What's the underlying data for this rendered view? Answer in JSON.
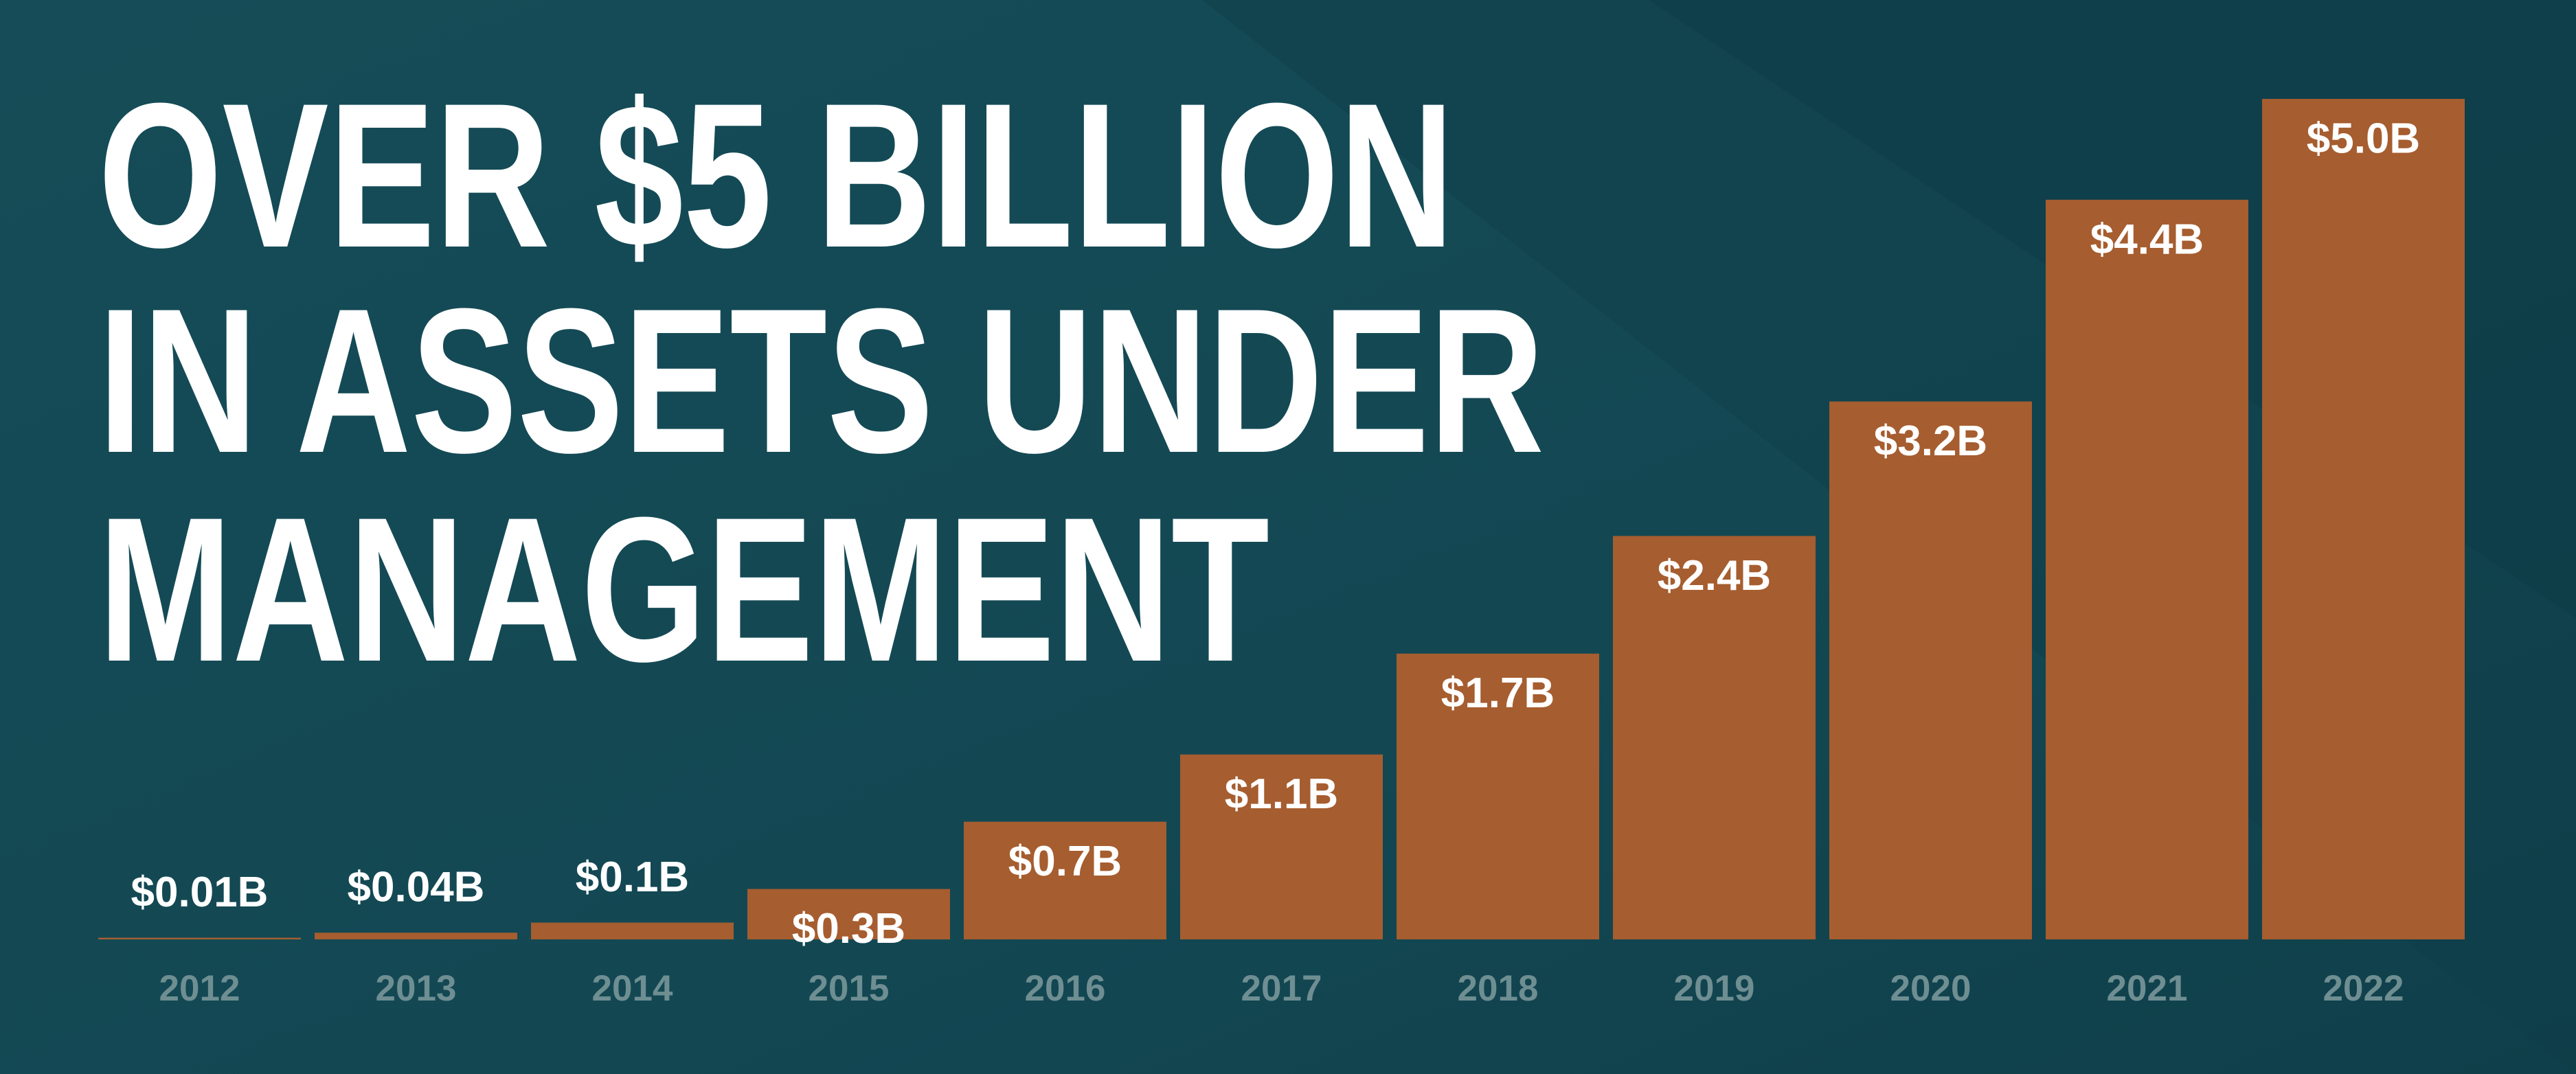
{
  "chart_data": {
    "type": "bar",
    "title": [
      "OVER $5 BILLION",
      "IN ASSETS UNDER",
      "MANAGEMENT"
    ],
    "categories": [
      "2012",
      "2013",
      "2014",
      "2015",
      "2016",
      "2017",
      "2018",
      "2019",
      "2020",
      "2021",
      "2022"
    ],
    "values": [
      0.01,
      0.04,
      0.1,
      0.3,
      0.7,
      1.1,
      1.7,
      2.4,
      3.2,
      4.4,
      5.0
    ],
    "value_labels": [
      "$0.01B",
      "$0.04B",
      "$0.1B",
      "$0.3B",
      "$0.7B",
      "$1.1B",
      "$1.7B",
      "$2.4B",
      "$3.2B",
      "$4.4B",
      "$5.0B"
    ],
    "color": "#a65d2f"
  }
}
